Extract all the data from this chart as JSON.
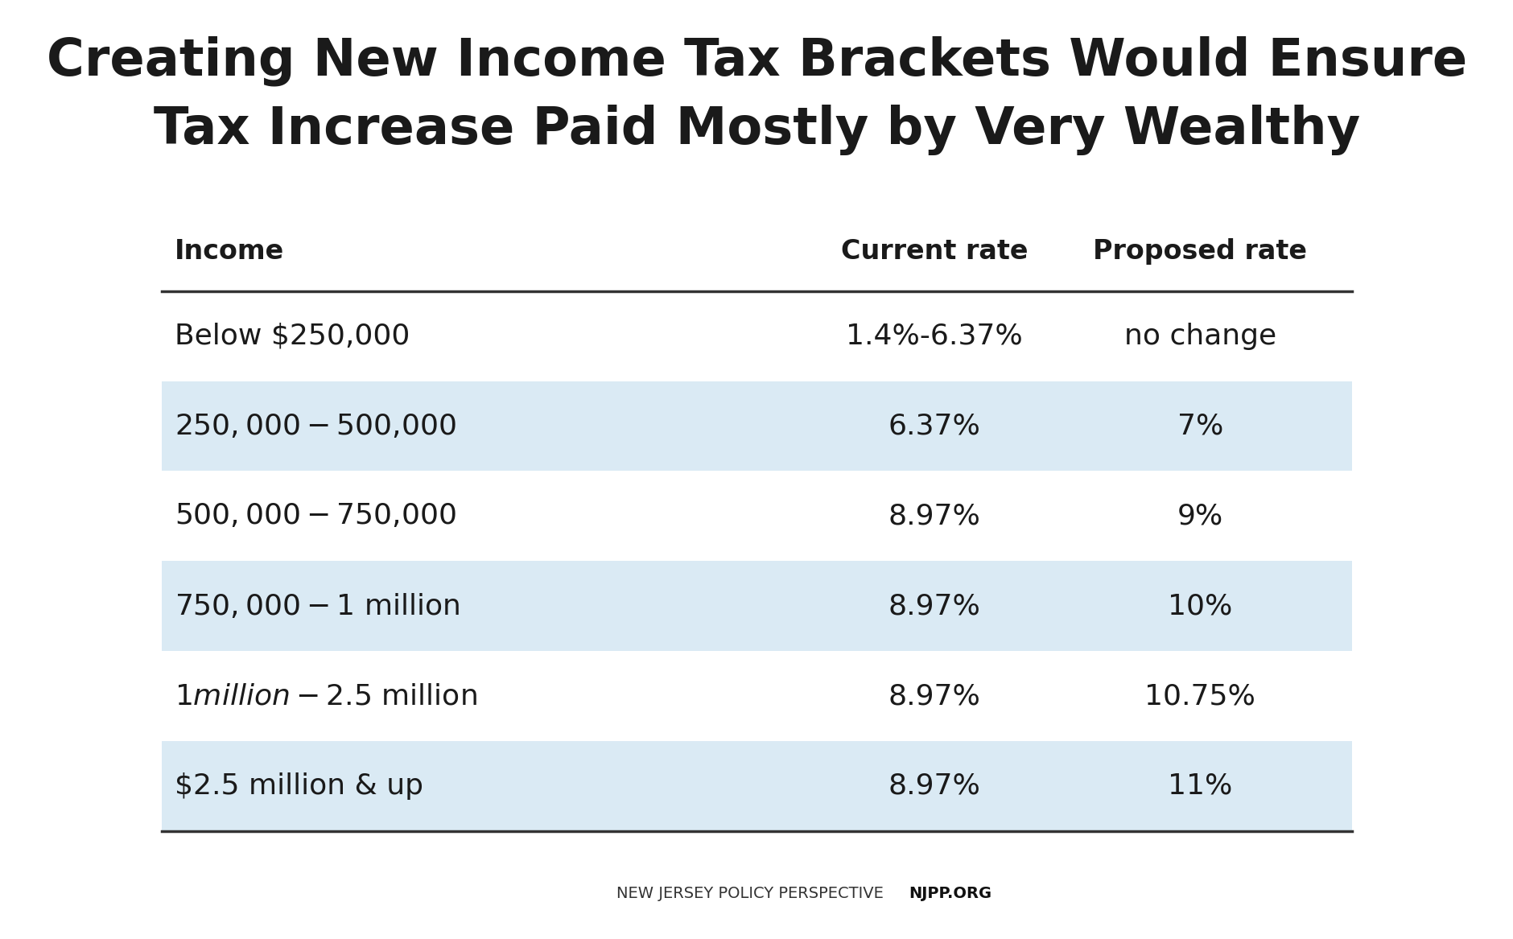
{
  "title_line1": "Creating New Income Tax Brackets Would Ensure",
  "title_line2": "Tax Increase Paid Mostly by Very Wealthy",
  "col_headers": [
    "Income",
    "Current rate",
    "Proposed rate"
  ],
  "rows": [
    {
      "income": "Below $250,000",
      "current": "1.4%-6.37%",
      "proposed": "no change",
      "shaded": false
    },
    {
      "income": "$250,000-$500,000",
      "current": "6.37%",
      "proposed": "7%",
      "shaded": true
    },
    {
      "income": "$500,000-$750,000",
      "current": "8.97%",
      "proposed": "9%",
      "shaded": false
    },
    {
      "income": "$750,000-$1 million",
      "current": "8.97%",
      "proposed": "10%",
      "shaded": true
    },
    {
      "income": "$1 million-$2.5 million",
      "current": "8.97%",
      "proposed": "10.75%",
      "shaded": false
    },
    {
      "income": "$2.5 million & up",
      "current": "8.97%",
      "proposed": "11%",
      "shaded": true
    }
  ],
  "footer_left": "NEW JERSEY POLICY PERSPECTIVE",
  "footer_right": "NJPP.ORG",
  "bg_color": "#ffffff",
  "shade_color": "#daeaf4",
  "line_color": "#333333",
  "title_color": "#1a1a1a",
  "text_color": "#1a1a1a",
  "header_color": "#1a1a1a"
}
